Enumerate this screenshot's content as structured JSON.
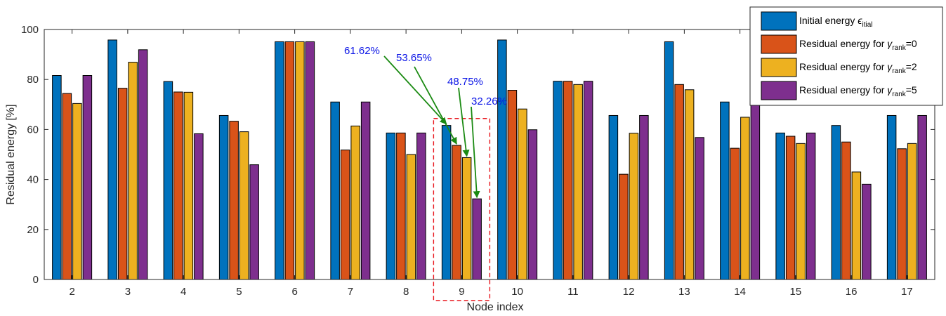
{
  "chart_data": {
    "type": "bar",
    "xlabel": "Node index",
    "ylabel": "Residual energy [%]",
    "ylim": [
      0,
      100
    ],
    "yticks": [
      0,
      20,
      40,
      60,
      80,
      100
    ],
    "grid": false,
    "legend_position": "top-right",
    "categories": [
      "2",
      "3",
      "4",
      "5",
      "6",
      "7",
      "8",
      "9",
      "10",
      "11",
      "12",
      "13",
      "14",
      "15",
      "16",
      "17"
    ],
    "series": [
      {
        "legend_main": "Initial energy ",
        "legend_symbol": "ϵ",
        "legend_sub": "itial",
        "legend_tail": "",
        "color": "#0072BD",
        "values": [
          81.6,
          95.8,
          79.2,
          65.6,
          95.1,
          71.0,
          58.6,
          61.62,
          95.8,
          79.3,
          65.6,
          95.1,
          71.0,
          58.6,
          61.6,
          65.6
        ]
      },
      {
        "legend_main": "Residual energy for ",
        "legend_symbol": "γ",
        "legend_sub": "rank",
        "legend_tail": "=0",
        "color": "#D95319",
        "values": [
          74.4,
          76.5,
          75.0,
          63.3,
          95.1,
          51.8,
          58.6,
          53.65,
          75.7,
          79.3,
          42.1,
          78.0,
          52.5,
          57.3,
          55.0,
          52.3
        ]
      },
      {
        "legend_main": "Residual energy for ",
        "legend_symbol": "γ",
        "legend_sub": "rank",
        "legend_tail": "=2",
        "color": "#EDB120",
        "values": [
          70.4,
          86.9,
          74.9,
          59.1,
          95.1,
          61.4,
          50.0,
          48.75,
          68.2,
          78.0,
          58.5,
          75.9,
          64.9,
          54.4,
          43.0,
          54.4
        ]
      },
      {
        "legend_main": "Residual energy for ",
        "legend_symbol": "γ",
        "legend_sub": "rank",
        "legend_tail": "=5",
        "color": "#7E2F8E",
        "values": [
          81.6,
          91.9,
          58.3,
          45.9,
          95.1,
          71.0,
          58.6,
          32.26,
          59.9,
          79.3,
          65.6,
          56.8,
          71.0,
          58.6,
          38.1,
          65.6
        ]
      }
    ],
    "annotations": [
      {
        "text": "61.62%",
        "series": 0,
        "category": 7
      },
      {
        "text": "53.65%",
        "series": 1,
        "category": 7
      },
      {
        "text": "48.75%",
        "series": 2,
        "category": 7
      },
      {
        "text": "32.26%",
        "series": 3,
        "category": 7
      }
    ],
    "highlight": {
      "category": 7,
      "style": "dashed",
      "color": "#E8161D"
    },
    "annotation_text_color": "#0A14E6",
    "annotation_arrow_color": "#1A8A12"
  }
}
